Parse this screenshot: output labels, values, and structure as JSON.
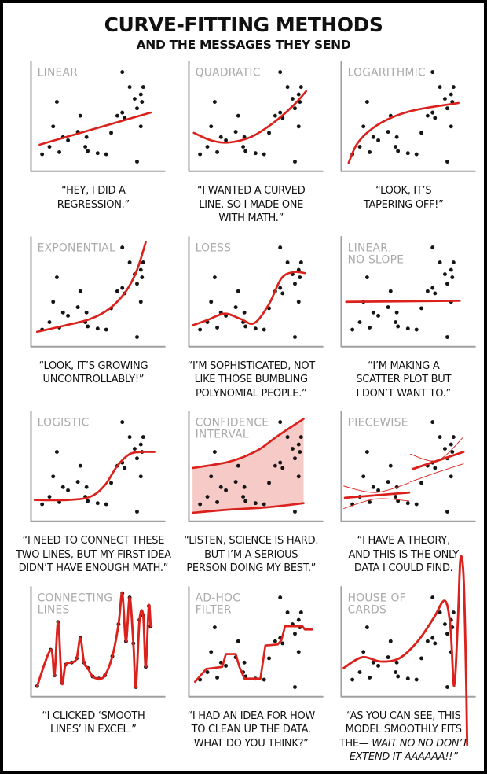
{
  "page": {
    "title": "CURVE-FITTING METHODS",
    "subtitle": "AND THE MESSAGES THEY SEND"
  },
  "colors": {
    "curve": "#db211c",
    "band_fill": "#f6cac6",
    "axis": "#a0a0a0",
    "panel_title": "#aaaaaa",
    "dot": "#151515",
    "background": "#ffffff",
    "border": "#000000"
  },
  "chart_data": {
    "type": "scatter",
    "layout": {
      "grid": "3 columns x 4 rows",
      "x_range": [
        0,
        1
      ],
      "y_range": [
        0,
        1
      ],
      "axes": "left and bottom only, unlabeled, no ticks",
      "gridlines": false,
      "legend": false
    },
    "common_points": [
      [
        0.74,
        0.93
      ],
      [
        0.8,
        0.79
      ],
      [
        0.91,
        0.79
      ],
      [
        0.89,
        0.72
      ],
      [
        0.84,
        0.68
      ],
      [
        0.9,
        0.65
      ],
      [
        0.21,
        0.65
      ],
      [
        0.86,
        0.59
      ],
      [
        0.74,
        0.55
      ],
      [
        0.7,
        0.52
      ],
      [
        0.4,
        0.52
      ],
      [
        0.76,
        0.5
      ],
      [
        0.18,
        0.42
      ],
      [
        0.89,
        0.42
      ],
      [
        0.38,
        0.37
      ],
      [
        0.65,
        0.36
      ],
      [
        0.26,
        0.32
      ],
      [
        0.3,
        0.29
      ],
      [
        0.45,
        0.32
      ],
      [
        0.15,
        0.23
      ],
      [
        0.44,
        0.23
      ],
      [
        0.46,
        0.19
      ],
      [
        0.09,
        0.16
      ],
      [
        0.23,
        0.18
      ],
      [
        0.54,
        0.17
      ],
      [
        0.61,
        0.16
      ],
      [
        0.86,
        0.09
      ]
    ],
    "panels": [
      {
        "id": "linear",
        "title_lines": [
          "LINEAR"
        ],
        "caption_lines": [
          "“HEY, I DID A",
          "REGRESSION.”"
        ],
        "points": "common",
        "curves": [
          {
            "pts": [
              [
                0.07,
                0.25
              ],
              [
                0.52,
                0.4
              ],
              [
                0.97,
                0.55
              ]
            ],
            "smooth": false
          }
        ]
      },
      {
        "id": "quadratic",
        "title_lines": [
          "QUADRATIC"
        ],
        "caption_lines": [
          "“I WANTED A CURVED",
          "LINE, SO I MADE ONE",
          "WITH MATH.”"
        ],
        "points": "common",
        "curves": [
          {
            "pts": [
              [
                0.04,
                0.36
              ],
              [
                0.18,
                0.29
              ],
              [
                0.32,
                0.27
              ],
              [
                0.5,
                0.32
              ],
              [
                0.68,
                0.45
              ],
              [
                0.85,
                0.62
              ],
              [
                0.95,
                0.75
              ]
            ]
          }
        ]
      },
      {
        "id": "logarithmic",
        "title_lines": [
          "LOGARITHMIC"
        ],
        "caption_lines": [
          "“LOOK, IT’S",
          "TAPERING OFF!”"
        ],
        "points": "common",
        "curves": [
          {
            "pts": [
              [
                0.06,
                0.08
              ],
              [
                0.13,
                0.26
              ],
              [
                0.25,
                0.4
              ],
              [
                0.42,
                0.51
              ],
              [
                0.62,
                0.58
              ],
              [
                0.95,
                0.64
              ]
            ]
          }
        ]
      },
      {
        "id": "exponential",
        "title_lines": [
          "EXPONENTIAL"
        ],
        "caption_lines": [
          "“LOOK, IT’S GROWING",
          "UNCONTROLLABLY!”"
        ],
        "points": "common",
        "curves": [
          {
            "pts": [
              [
                0.05,
                0.14
              ],
              [
                0.28,
                0.2
              ],
              [
                0.48,
                0.26
              ],
              [
                0.64,
                0.36
              ],
              [
                0.77,
                0.52
              ],
              [
                0.86,
                0.72
              ],
              [
                0.93,
                0.98
              ]
            ]
          }
        ]
      },
      {
        "id": "loess",
        "title_lines": [
          "LOESS"
        ],
        "caption_lines": [
          "“I’M SOPHISTICATED, NOT",
          "LIKE THOSE BUMBLING",
          "POLYNOMIAL PEOPLE.”"
        ],
        "points": "common",
        "curves": [
          {
            "pts": [
              [
                0.03,
                0.2
              ],
              [
                0.15,
                0.25
              ],
              [
                0.29,
                0.31
              ],
              [
                0.42,
                0.26
              ],
              [
                0.53,
                0.22
              ],
              [
                0.65,
                0.4
              ],
              [
                0.75,
                0.64
              ],
              [
                0.85,
                0.7
              ],
              [
                0.94,
                0.69
              ]
            ]
          }
        ]
      },
      {
        "id": "linear-no-slope",
        "title_lines": [
          "LINEAR,",
          "NO SLOPE"
        ],
        "caption_lines": [
          "“I’M MAKING A",
          "SCATTER PLOT BUT",
          "I DON’T WANT TO.”"
        ],
        "points": "common",
        "curves": [
          {
            "pts": [
              [
                0.04,
                0.42
              ],
              [
                0.96,
                0.43
              ]
            ],
            "smooth": false
          }
        ]
      },
      {
        "id": "logistic",
        "title_lines": [
          "LOGISTIC"
        ],
        "caption_lines": [
          "“I NEED TO CONNECT THESE",
          "TWO LINES, BUT MY FIRST IDEA",
          "DIDN’T HAVE ENOUGH MATH.”"
        ],
        "points": "common",
        "curves": [
          {
            "pts": [
              [
                0.03,
                0.2
              ],
              [
                0.3,
                0.2
              ],
              [
                0.48,
                0.23
              ],
              [
                0.6,
                0.34
              ],
              [
                0.7,
                0.52
              ],
              [
                0.8,
                0.63
              ],
              [
                0.9,
                0.65
              ],
              [
                1.0,
                0.65
              ]
            ]
          }
        ]
      },
      {
        "id": "confidence-interval",
        "title_lines": [
          "CONFIDENCE",
          "INTERVAL"
        ],
        "caption_lines": [
          "“LISTEN, SCIENCE IS HARD.",
          "BUT I’M A SERIOUS",
          "PERSON DOING MY BEST.”"
        ],
        "points": "common",
        "band": {
          "upper": [
            [
              0.03,
              0.5
            ],
            [
              0.33,
              0.56
            ],
            [
              0.55,
              0.66
            ],
            [
              0.72,
              0.8
            ],
            [
              0.93,
              0.96
            ]
          ],
          "lower": [
            [
              0.03,
              0.08
            ],
            [
              0.33,
              0.11
            ],
            [
              0.62,
              0.13
            ],
            [
              0.93,
              0.17
            ]
          ]
        },
        "curves": []
      },
      {
        "id": "piecewise",
        "title_lines": [
          "PIECEWISE"
        ],
        "caption_lines": [
          "“I HAVE A THEORY,",
          "AND THIS IS THE ONLY",
          "DATA I COULD FIND."
        ],
        "points": "common",
        "curves": [
          {
            "pts": [
              [
                0.03,
                0.22
              ],
              [
                0.55,
                0.27
              ]
            ],
            "smooth": false,
            "w": 2.8
          },
          {
            "pts": [
              [
                0.58,
                0.49
              ],
              [
                0.99,
                0.65
              ]
            ],
            "smooth": false,
            "w": 2.8
          },
          {
            "pts": [
              [
                0.02,
                0.33
              ],
              [
                0.28,
                0.27
              ],
              [
                0.55,
                0.36
              ]
            ],
            "w": 0.9
          },
          {
            "pts": [
              [
                0.02,
                0.12
              ],
              [
                0.28,
                0.21
              ],
              [
                0.55,
                0.19
              ]
            ],
            "w": 0.9
          },
          {
            "pts": [
              [
                0.56,
                0.63
              ],
              [
                0.78,
                0.57
              ],
              [
                0.99,
                0.79
              ]
            ],
            "w": 0.9
          },
          {
            "pts": [
              [
                0.56,
                0.37
              ],
              [
                0.78,
                0.46
              ],
              [
                0.99,
                0.54
              ]
            ],
            "w": 0.9
          }
        ]
      },
      {
        "id": "connecting-lines",
        "title_lines": [
          "CONNECTING",
          "LINES"
        ],
        "caption_lines": [
          "“I CLICKED ‘SMOOTH",
          "LINES’ IN EXCEL.”"
        ],
        "points": "custom",
        "custom_points": [
          [
            0.05,
            0.1
          ],
          [
            0.16,
            0.44
          ],
          [
            0.19,
            0.2
          ],
          [
            0.22,
            0.7
          ],
          [
            0.25,
            0.13
          ],
          [
            0.28,
            0.3
          ],
          [
            0.33,
            0.32
          ],
          [
            0.37,
            0.36
          ],
          [
            0.4,
            0.55
          ],
          [
            0.43,
            0.32
          ],
          [
            0.46,
            0.27
          ],
          [
            0.5,
            0.19
          ],
          [
            0.55,
            0.17
          ],
          [
            0.6,
            0.2
          ],
          [
            0.66,
            0.38
          ],
          [
            0.71,
            0.68
          ],
          [
            0.74,
            0.97
          ],
          [
            0.77,
            0.52
          ],
          [
            0.8,
            0.93
          ],
          [
            0.83,
            0.5
          ],
          [
            0.85,
            0.09
          ],
          [
            0.88,
            0.72
          ],
          [
            0.91,
            0.76
          ],
          [
            0.93,
            0.28
          ],
          [
            0.955,
            0.85
          ],
          [
            0.97,
            0.66
          ]
        ],
        "curves": [
          {
            "pts": [
              [
                0.05,
                0.1
              ],
              [
                0.16,
                0.44
              ],
              [
                0.19,
                0.2
              ],
              [
                0.22,
                0.7
              ],
              [
                0.25,
                0.13
              ],
              [
                0.28,
                0.3
              ],
              [
                0.33,
                0.32
              ],
              [
                0.37,
                0.36
              ],
              [
                0.4,
                0.55
              ],
              [
                0.43,
                0.32
              ],
              [
                0.46,
                0.27
              ],
              [
                0.5,
                0.19
              ],
              [
                0.55,
                0.17
              ],
              [
                0.6,
                0.2
              ],
              [
                0.66,
                0.38
              ],
              [
                0.71,
                0.68
              ],
              [
                0.74,
                0.97
              ],
              [
                0.77,
                0.52
              ],
              [
                0.8,
                0.93
              ],
              [
                0.83,
                0.5
              ],
              [
                0.85,
                0.09
              ],
              [
                0.88,
                0.72
              ],
              [
                0.91,
                0.76
              ],
              [
                0.93,
                0.28
              ],
              [
                0.955,
                0.85
              ],
              [
                0.97,
                0.66
              ]
            ],
            "w": 2.8
          }
        ]
      },
      {
        "id": "ad-hoc-filter",
        "title_lines": [
          "AD-HOC",
          "FILTER"
        ],
        "caption_lines": [
          "“I HAD AN IDEA FOR HOW",
          "TO CLEAN UP THE DATA.",
          "WHAT DO YOU THINK?”"
        ],
        "points": "common",
        "curves": [
          {
            "pts": [
              [
                0.05,
                0.14
              ],
              [
                0.14,
                0.26
              ],
              [
                0.27,
                0.28
              ],
              [
                0.3,
                0.4
              ],
              [
                0.38,
                0.4
              ],
              [
                0.41,
                0.28
              ],
              [
                0.45,
                0.17
              ],
              [
                0.58,
                0.17
              ],
              [
                0.62,
                0.48
              ],
              [
                0.72,
                0.49
              ],
              [
                0.75,
                0.53
              ],
              [
                0.78,
                0.66
              ],
              [
                0.92,
                0.66
              ],
              [
                0.94,
                0.63
              ],
              [
                1.0,
                0.63
              ]
            ],
            "smooth": false
          }
        ]
      },
      {
        "id": "house-of-cards",
        "title_lines": [
          "HOUSE OF",
          "CARDS"
        ],
        "caption_lines": [
          "“AS YOU CAN SEE, THIS",
          "MODEL SMOOTHLY FITS",
          [
            {
              "t": "THE— ",
              "i": false
            },
            {
              "t": "WAIT NO NO DON’T",
              "i": true
            }
          ],
          [
            {
              "t": "EXTEND IT AAAAAA!!”",
              "i": true
            }
          ]
        ],
        "points": "common",
        "curves": [
          {
            "pts": [
              [
                0.02,
                0.27
              ],
              [
                0.17,
                0.37
              ],
              [
                0.32,
                0.33
              ],
              [
                0.47,
                0.36
              ],
              [
                0.62,
                0.52
              ],
              [
                0.75,
                0.74
              ],
              [
                0.84,
                0.9
              ],
              [
                0.885,
                0.65
              ],
              [
                0.915,
                0.1
              ],
              [
                0.945,
                0.7
              ],
              [
                0.965,
                1.28
              ],
              [
                0.99,
                1.15
              ],
              [
                1.01,
                0.3
              ],
              [
                1.02,
                -0.45
              ]
            ],
            "w": 2.8
          }
        ]
      }
    ]
  }
}
